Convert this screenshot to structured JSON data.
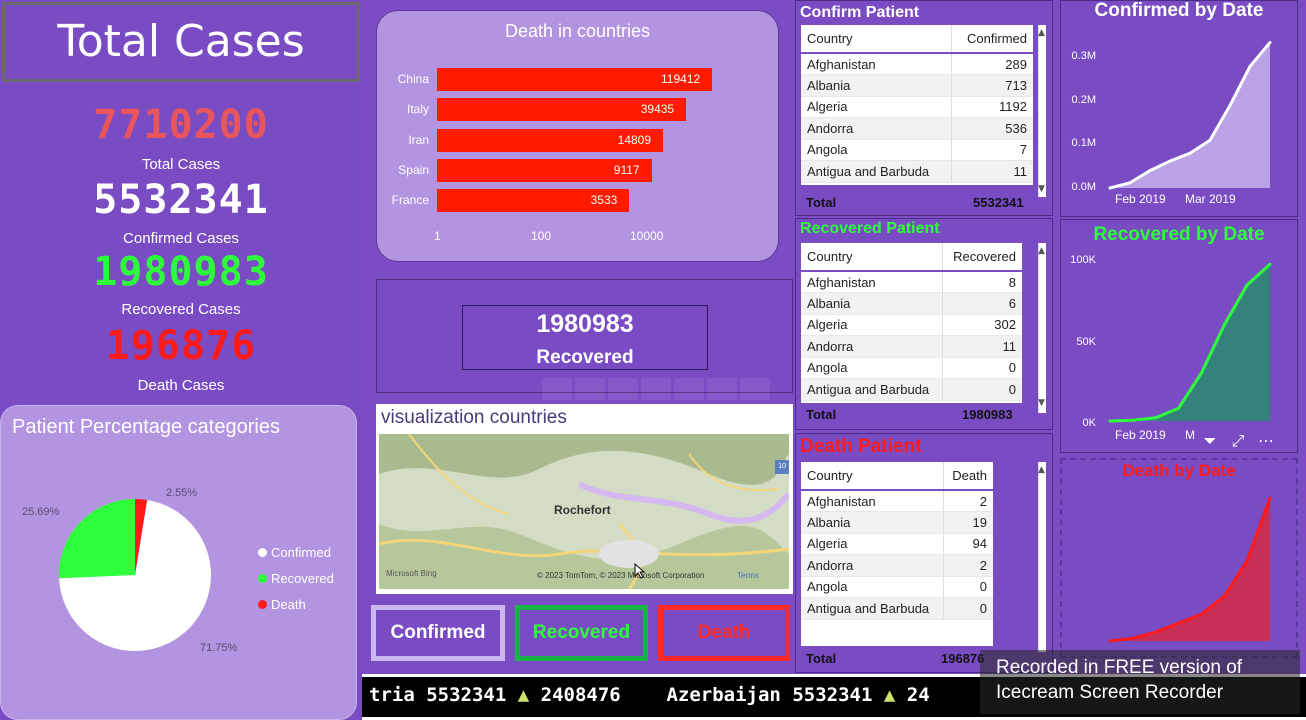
{
  "left": {
    "header": "Total Cases",
    "kpis": [
      {
        "value": "7710200",
        "label": "Total Cases",
        "color": "#e8555c"
      },
      {
        "value": "5532341",
        "label": "Confirmed Cases",
        "color": "#ffffff"
      },
      {
        "value": "1980983",
        "label": "Recovered Cases",
        "color": "#2dff3a"
      },
      {
        "value": "196876",
        "label": "Death Cases",
        "color": "#ff1a1a"
      }
    ],
    "pie": {
      "title": "Patient Percentage categories",
      "labels": {
        "confirmed_pct": "71.75%",
        "recovered_pct": "25.69%",
        "death_pct": "2.55%"
      },
      "legend": [
        "Confirmed",
        "Recovered",
        "Death"
      ]
    }
  },
  "death_chart": {
    "title": "Death in countries",
    "axis_ticks": [
      "1",
      "100",
      "10000"
    ]
  },
  "recovered_kpi": {
    "value": "1980983",
    "label": "Recovered"
  },
  "map": {
    "title": "visualization countries",
    "city": "Rochefort",
    "credit": "© 2023 TomTom, © 2023 Microsoft Corporation",
    "terms": "Terms",
    "brand": "Microsoft Bing",
    "route_badge": "10"
  },
  "buttons": {
    "confirmed": "Confirmed",
    "recovered": "Recovered",
    "death": "Death"
  },
  "ticker": {
    "part1": "tria 5532341",
    "part2": "2408476",
    "part3": "Azerbaijan 5532341",
    "part4": "24"
  },
  "tables": {
    "confirm": {
      "title": "Confirm Patient",
      "col1": "Country",
      "col2": "Confirmed",
      "rows": [
        [
          "Afghanistan",
          "289"
        ],
        [
          "Albania",
          "713"
        ],
        [
          "Algeria",
          "1192"
        ],
        [
          "Andorra",
          "536"
        ],
        [
          "Angola",
          "7"
        ],
        [
          "Antigua and Barbuda",
          "11"
        ]
      ],
      "total_label": "Total",
      "total_value": "5532341"
    },
    "recovered": {
      "title": "Recovered Patient",
      "col1": "Country",
      "col2": "Recovered",
      "rows": [
        [
          "Afghanistan",
          "8"
        ],
        [
          "Albania",
          "6"
        ],
        [
          "Algeria",
          "302"
        ],
        [
          "Andorra",
          "11"
        ],
        [
          "Angola",
          "0"
        ],
        [
          "Antigua and Barbuda",
          "0"
        ]
      ],
      "total_label": "Total",
      "total_value": "1980983"
    },
    "death": {
      "title": "Death Patient",
      "col1": "Country",
      "col2": "Death",
      "rows": [
        [
          "Afghanistan",
          "2"
        ],
        [
          "Albania",
          "19"
        ],
        [
          "Algeria",
          "94"
        ],
        [
          "Andorra",
          "2"
        ],
        [
          "Angola",
          "0"
        ],
        [
          "Antigua and Barbuda",
          "0"
        ]
      ],
      "total_label": "Total",
      "total_value": "196876"
    }
  },
  "right_charts": {
    "confirmed": {
      "title": "Confirmed by Date",
      "yticks": [
        "0.3M",
        "0.2M",
        "0.1M",
        "0.0M"
      ],
      "xticks": [
        "Feb 2019",
        "Mar 2019"
      ]
    },
    "recovered": {
      "title": "Recovered by Date",
      "yticks": [
        "100K",
        "50K",
        "0K"
      ],
      "xticks": [
        "Feb 2019",
        "M"
      ]
    },
    "death": {
      "title": "Death by Date"
    }
  },
  "watermark": {
    "line1": "Recorded in FREE version of",
    "line2": "Icecream Screen Recorder"
  },
  "colors": {
    "bg": "#7a4cc4",
    "card": "#b394e0",
    "death_red": "#ff1a00",
    "recovered_green": "#2dff3a",
    "confirmed_white": "#ffffff"
  },
  "chart_data": [
    {
      "type": "bar",
      "title": "Death in countries",
      "categories": [
        "China",
        "Italy",
        "Iran",
        "Spain",
        "France"
      ],
      "values": [
        119412,
        39435,
        14809,
        9117,
        3533
      ],
      "xscale": "log",
      "xlim": [
        1,
        200000
      ]
    },
    {
      "type": "pie",
      "title": "Patient Percentage categories",
      "categories": [
        "Confirmed",
        "Recovered",
        "Death"
      ],
      "values": [
        71.75,
        25.69,
        2.55
      ]
    },
    {
      "type": "area",
      "title": "Confirmed by Date",
      "ylim": [
        0,
        350000
      ],
      "x": [
        "2019-01-22",
        "2019-02-01",
        "2019-02-10",
        "2019-02-20",
        "2019-03-01",
        "2019-03-10",
        "2019-03-18",
        "2019-03-22",
        "2019-03-24"
      ],
      "values": [
        0,
        12000,
        40000,
        62000,
        80000,
        110000,
        190000,
        280000,
        335000
      ]
    },
    {
      "type": "area",
      "title": "Recovered by Date",
      "ylim": [
        0,
        100000
      ],
      "x": [
        "2019-01-22",
        "2019-02-01",
        "2019-02-10",
        "2019-02-20",
        "2019-03-01",
        "2019-03-10",
        "2019-03-18",
        "2019-03-24"
      ],
      "values": [
        0,
        500,
        2000,
        8000,
        30000,
        60000,
        85000,
        98000
      ]
    },
    {
      "type": "area",
      "title": "Death by Date",
      "values": [
        0,
        300,
        1000,
        2000,
        3000,
        5000,
        9000,
        16000
      ]
    }
  ]
}
